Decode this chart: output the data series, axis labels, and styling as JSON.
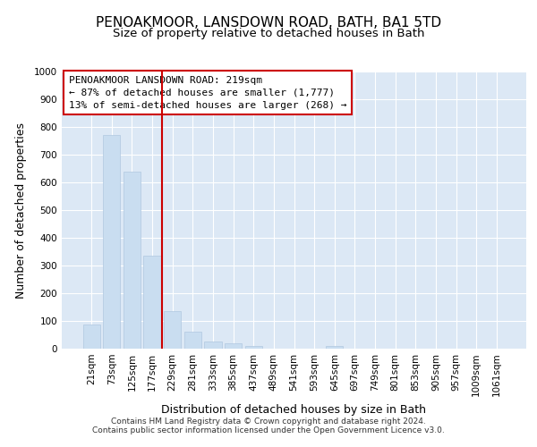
{
  "title1": "PENOAKMOOR, LANSDOWN ROAD, BATH, BA1 5TD",
  "title2": "Size of property relative to detached houses in Bath",
  "xlabel": "Distribution of detached houses by size in Bath",
  "ylabel": "Number of detached properties",
  "bar_color": "#c9ddf0",
  "bar_edge_color": "#b0c8e0",
  "background_color": "#dce8f5",
  "grid_color": "#ffffff",
  "fig_background": "#ffffff",
  "categories": [
    "21sqm",
    "73sqm",
    "125sqm",
    "177sqm",
    "229sqm",
    "281sqm",
    "333sqm",
    "385sqm",
    "437sqm",
    "489sqm",
    "541sqm",
    "593sqm",
    "645sqm",
    "697sqm",
    "749sqm",
    "801sqm",
    "853sqm",
    "905sqm",
    "957sqm",
    "1009sqm",
    "1061sqm"
  ],
  "values": [
    87,
    770,
    640,
    335,
    135,
    60,
    25,
    20,
    10,
    0,
    0,
    0,
    10,
    0,
    0,
    0,
    0,
    0,
    0,
    0,
    0
  ],
  "ylim": [
    0,
    1000
  ],
  "yticks": [
    0,
    100,
    200,
    300,
    400,
    500,
    600,
    700,
    800,
    900,
    1000
  ],
  "red_line_x": 4,
  "red_line_color": "#cc0000",
  "annotation_line1": "PENOAKMOOR LANSDOWN ROAD: 219sqm",
  "annotation_line2": "← 87% of detached houses are smaller (1,777)",
  "annotation_line3": "13% of semi-detached houses are larger (268) →",
  "annotation_box_color": "#cc0000",
  "footer_line1": "Contains HM Land Registry data © Crown copyright and database right 2024.",
  "footer_line2": "Contains public sector information licensed under the Open Government Licence v3.0.",
  "title1_fontsize": 11,
  "title2_fontsize": 9.5,
  "tick_fontsize": 7.5,
  "label_fontsize": 9,
  "annotation_fontsize": 8,
  "footer_fontsize": 6.5
}
